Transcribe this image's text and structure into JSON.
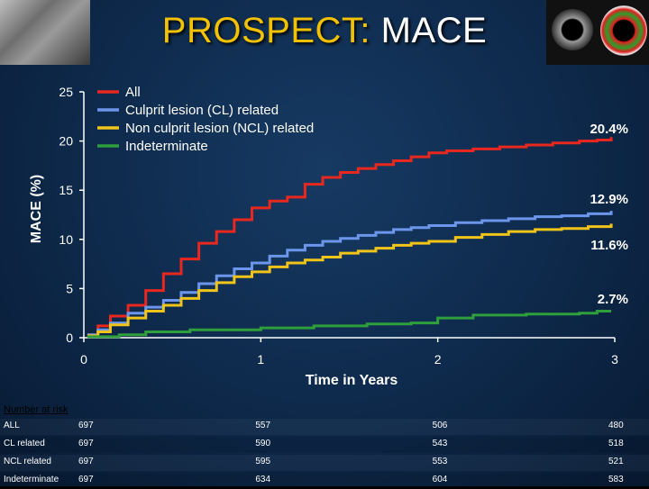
{
  "title": {
    "part1": "PROSPECT:",
    "part2": "MACE"
  },
  "chart_data": {
    "type": "line",
    "xlabel": "Time in Years",
    "ylabel": "MACE (%)",
    "xlim": [
      0,
      3
    ],
    "ylim": [
      0,
      25
    ],
    "x_ticks": [
      0,
      1,
      2,
      3
    ],
    "y_ticks": [
      0,
      5,
      10,
      15,
      20,
      25
    ],
    "legend_position": "top-left",
    "series": [
      {
        "name": "All",
        "color": "#e8281e",
        "end_label": "20.4%",
        "points": [
          [
            0.02,
            0.3
          ],
          [
            0.08,
            1.2
          ],
          [
            0.15,
            2.2
          ],
          [
            0.25,
            3.3
          ],
          [
            0.35,
            4.8
          ],
          [
            0.45,
            6.5
          ],
          [
            0.55,
            8.0
          ],
          [
            0.65,
            9.6
          ],
          [
            0.75,
            10.8
          ],
          [
            0.85,
            12.0
          ],
          [
            0.95,
            13.2
          ],
          [
            1.05,
            13.9
          ],
          [
            1.15,
            14.3
          ],
          [
            1.25,
            15.6
          ],
          [
            1.35,
            16.3
          ],
          [
            1.45,
            16.8
          ],
          [
            1.55,
            17.2
          ],
          [
            1.65,
            17.6
          ],
          [
            1.75,
            18.0
          ],
          [
            1.85,
            18.4
          ],
          [
            1.95,
            18.8
          ],
          [
            2.05,
            19.0
          ],
          [
            2.2,
            19.2
          ],
          [
            2.35,
            19.4
          ],
          [
            2.5,
            19.6
          ],
          [
            2.65,
            19.8
          ],
          [
            2.8,
            20.0
          ],
          [
            2.9,
            20.1
          ],
          [
            2.98,
            20.4
          ]
        ]
      },
      {
        "name": "Culprit lesion (CL) related",
        "color": "#6b96ec",
        "end_label": "12.9%",
        "points": [
          [
            0.02,
            0.3
          ],
          [
            0.08,
            0.8
          ],
          [
            0.15,
            1.5
          ],
          [
            0.25,
            2.5
          ],
          [
            0.35,
            3.1
          ],
          [
            0.45,
            3.8
          ],
          [
            0.55,
            4.6
          ],
          [
            0.65,
            5.5
          ],
          [
            0.75,
            6.3
          ],
          [
            0.85,
            7.0
          ],
          [
            0.95,
            7.6
          ],
          [
            1.05,
            8.3
          ],
          [
            1.15,
            8.9
          ],
          [
            1.25,
            9.4
          ],
          [
            1.35,
            9.8
          ],
          [
            1.45,
            10.1
          ],
          [
            1.55,
            10.4
          ],
          [
            1.65,
            10.7
          ],
          [
            1.75,
            11.0
          ],
          [
            1.85,
            11.2
          ],
          [
            1.95,
            11.4
          ],
          [
            2.1,
            11.7
          ],
          [
            2.25,
            11.9
          ],
          [
            2.4,
            12.1
          ],
          [
            2.55,
            12.3
          ],
          [
            2.7,
            12.4
          ],
          [
            2.85,
            12.6
          ],
          [
            2.98,
            12.9
          ]
        ]
      },
      {
        "name": "Non culprit lesion (NCL) related",
        "color": "#f0c419",
        "end_label": "11.6%",
        "points": [
          [
            0.02,
            0.2
          ],
          [
            0.08,
            0.6
          ],
          [
            0.15,
            1.3
          ],
          [
            0.25,
            2.0
          ],
          [
            0.35,
            2.7
          ],
          [
            0.45,
            3.3
          ],
          [
            0.55,
            4.0
          ],
          [
            0.65,
            4.8
          ],
          [
            0.75,
            5.6
          ],
          [
            0.85,
            6.2
          ],
          [
            0.95,
            6.7
          ],
          [
            1.05,
            7.2
          ],
          [
            1.15,
            7.6
          ],
          [
            1.25,
            7.9
          ],
          [
            1.35,
            8.2
          ],
          [
            1.45,
            8.6
          ],
          [
            1.55,
            8.8
          ],
          [
            1.65,
            9.1
          ],
          [
            1.75,
            9.4
          ],
          [
            1.85,
            9.6
          ],
          [
            1.95,
            9.8
          ],
          [
            2.1,
            10.2
          ],
          [
            2.25,
            10.5
          ],
          [
            2.4,
            10.8
          ],
          [
            2.55,
            11.0
          ],
          [
            2.7,
            11.1
          ],
          [
            2.85,
            11.3
          ],
          [
            2.98,
            11.6
          ]
        ]
      },
      {
        "name": "Indeterminate",
        "color": "#2f9f3c",
        "end_label": "2.7%",
        "points": [
          [
            0.02,
            0.1
          ],
          [
            0.2,
            0.3
          ],
          [
            0.35,
            0.6
          ],
          [
            0.6,
            0.8
          ],
          [
            1.0,
            1.0
          ],
          [
            1.3,
            1.2
          ],
          [
            1.6,
            1.4
          ],
          [
            1.85,
            1.5
          ],
          [
            2.0,
            2.0
          ],
          [
            2.2,
            2.3
          ],
          [
            2.5,
            2.4
          ],
          [
            2.8,
            2.5
          ],
          [
            2.9,
            2.7
          ],
          [
            2.98,
            2.7
          ]
        ]
      }
    ]
  },
  "risk_table": {
    "title": "Number at risk",
    "rows": [
      {
        "label": "ALL",
        "values": [
          "697",
          "557",
          "506",
          "480"
        ]
      },
      {
        "label": "CL related",
        "values": [
          "697",
          "590",
          "543",
          "518"
        ]
      },
      {
        "label": "NCL related",
        "values": [
          "697",
          "595",
          "553",
          "521"
        ]
      },
      {
        "label": "Indeterminate",
        "values": [
          "697",
          "634",
          "604",
          "583"
        ]
      }
    ]
  }
}
